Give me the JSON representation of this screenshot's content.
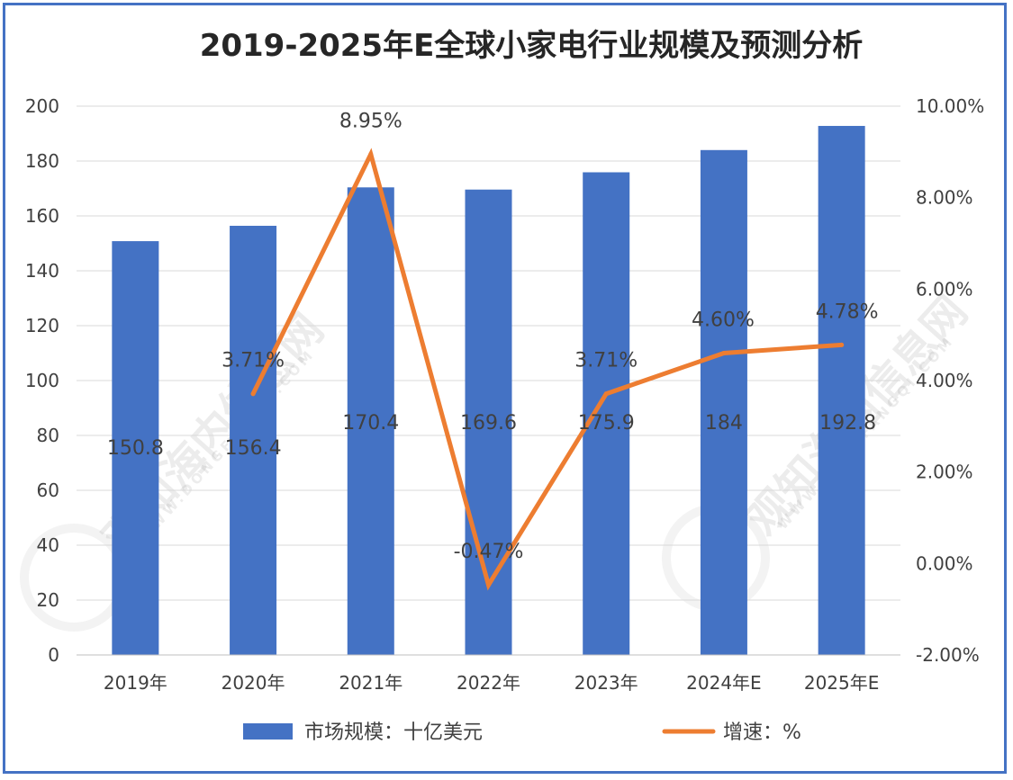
{
  "chart_data": {
    "type": "bar+line",
    "title": "2019-2025年E全球小家电行业规模及预测分析",
    "categories": [
      "2019年",
      "2020年",
      "2021年",
      "2022年",
      "2023年",
      "2024年E",
      "2025年E"
    ],
    "series": [
      {
        "name": "市场规模：十亿美元",
        "type": "bar",
        "axis": "left",
        "color": "#4472C4",
        "values": [
          150.8,
          156.4,
          170.4,
          169.6,
          175.9,
          184,
          192.8
        ],
        "labels": [
          "150.8",
          "156.4",
          "170.4",
          "169.6",
          "175.9",
          "184",
          "192.8"
        ]
      },
      {
        "name": "增速：%",
        "type": "line",
        "axis": "right",
        "color": "#ED7D31",
        "values": [
          null,
          3.71,
          8.95,
          -0.47,
          3.71,
          4.6,
          4.78
        ],
        "labels": [
          "",
          "3.71%",
          "8.95%",
          "-0.47%",
          "3.71%",
          "4.60%",
          "4.78%"
        ]
      }
    ],
    "y_left": {
      "min": 0,
      "max": 200,
      "ticks": [
        "0",
        "20",
        "40",
        "60",
        "80",
        "100",
        "120",
        "140",
        "160",
        "180",
        "200"
      ]
    },
    "y_right": {
      "min": -2,
      "max": 10,
      "ticks": [
        "-2.00%",
        "0.00%",
        "2.00%",
        "4.00%",
        "6.00%",
        "8.00%",
        "10.00%"
      ]
    },
    "grid": true,
    "legend_position": "bottom"
  },
  "watermark": {
    "text": "观知海内信息网",
    "url": "WWW.DONGFANGQI.COM"
  }
}
